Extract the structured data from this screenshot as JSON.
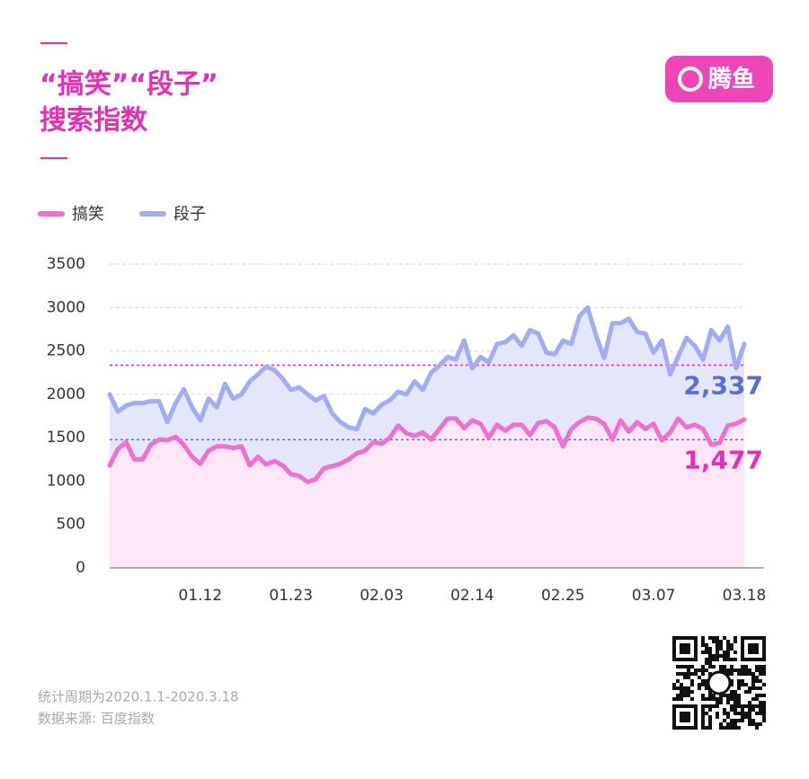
{
  "brand": "腾鱼",
  "chart_data": {
    "type": "area-line",
    "title": "“搞笑”“段子”",
    "subtitle": "搜索指数",
    "categories": [
      null,
      null,
      null,
      null,
      null,
      null,
      null,
      null,
      null,
      null,
      null,
      "01.12",
      null,
      null,
      null,
      null,
      null,
      null,
      null,
      null,
      null,
      null,
      "01.23",
      null,
      null,
      null,
      null,
      null,
      null,
      null,
      null,
      null,
      null,
      "02.03",
      null,
      null,
      null,
      null,
      null,
      null,
      null,
      null,
      null,
      null,
      "02.14",
      null,
      null,
      null,
      null,
      null,
      null,
      null,
      null,
      null,
      null,
      "02.25",
      null,
      null,
      null,
      null,
      null,
      null,
      null,
      null,
      null,
      null,
      "03.07",
      null,
      null,
      null,
      null,
      null,
      null,
      null,
      null,
      null,
      null,
      "03.18"
    ],
    "series": [
      {
        "name": "搞笑",
        "color": "#f06fcf",
        "fill": "#fde7f6",
        "values": [
          1180,
          1370,
          1450,
          1250,
          1250,
          1420,
          1480,
          1470,
          1510,
          1420,
          1280,
          1200,
          1350,
          1400,
          1400,
          1380,
          1400,
          1180,
          1280,
          1190,
          1230,
          1180,
          1080,
          1060,
          990,
          1020,
          1150,
          1170,
          1200,
          1250,
          1320,
          1350,
          1450,
          1430,
          1500,
          1640,
          1550,
          1520,
          1560,
          1480,
          1600,
          1720,
          1720,
          1610,
          1700,
          1660,
          1500,
          1650,
          1580,
          1650,
          1650,
          1530,
          1670,
          1690,
          1620,
          1400,
          1600,
          1680,
          1730,
          1720,
          1660,
          1480,
          1700,
          1570,
          1680,
          1600,
          1660,
          1470,
          1560,
          1720,
          1620,
          1650,
          1600,
          1420,
          1440,
          1640,
          1660,
          1710
        ]
      },
      {
        "name": "段子",
        "color": "#a3acf3",
        "fill": "#e4e6fb",
        "values": [
          2000,
          1800,
          1870,
          1900,
          1900,
          1920,
          1920,
          1680,
          1900,
          2060,
          1850,
          1700,
          1950,
          1850,
          2120,
          1950,
          2000,
          2150,
          2230,
          2320,
          2280,
          2180,
          2050,
          2080,
          2000,
          1930,
          1980,
          1780,
          1680,
          1620,
          1600,
          1830,
          1780,
          1880,
          1930,
          2030,
          2000,
          2150,
          2050,
          2250,
          2330,
          2430,
          2400,
          2620,
          2300,
          2430,
          2370,
          2580,
          2600,
          2680,
          2560,
          2740,
          2700,
          2480,
          2460,
          2620,
          2580,
          2900,
          3000,
          2680,
          2420,
          2820,
          2820,
          2870,
          2720,
          2700,
          2480,
          2620,
          2230,
          2440,
          2650,
          2560,
          2400,
          2740,
          2620,
          2780,
          2300,
          2580
        ]
      }
    ],
    "reference_lines": [
      {
        "value": 2337,
        "label": "2,337",
        "color": "#d63bb5",
        "label_color": "#5b6fd6"
      },
      {
        "value": 1477,
        "label": "1,477",
        "color": "#5b6fd6",
        "label_color": "#e62fb5"
      }
    ],
    "ylim": [
      0,
      3500
    ],
    "yticks": [
      0,
      500,
      1000,
      1500,
      2000,
      2500,
      3000,
      3500
    ],
    "grid": true
  },
  "footer": {
    "period": "统计周期为2020.1.1-2020.3.18",
    "source": "数据来源: 百度指数"
  }
}
